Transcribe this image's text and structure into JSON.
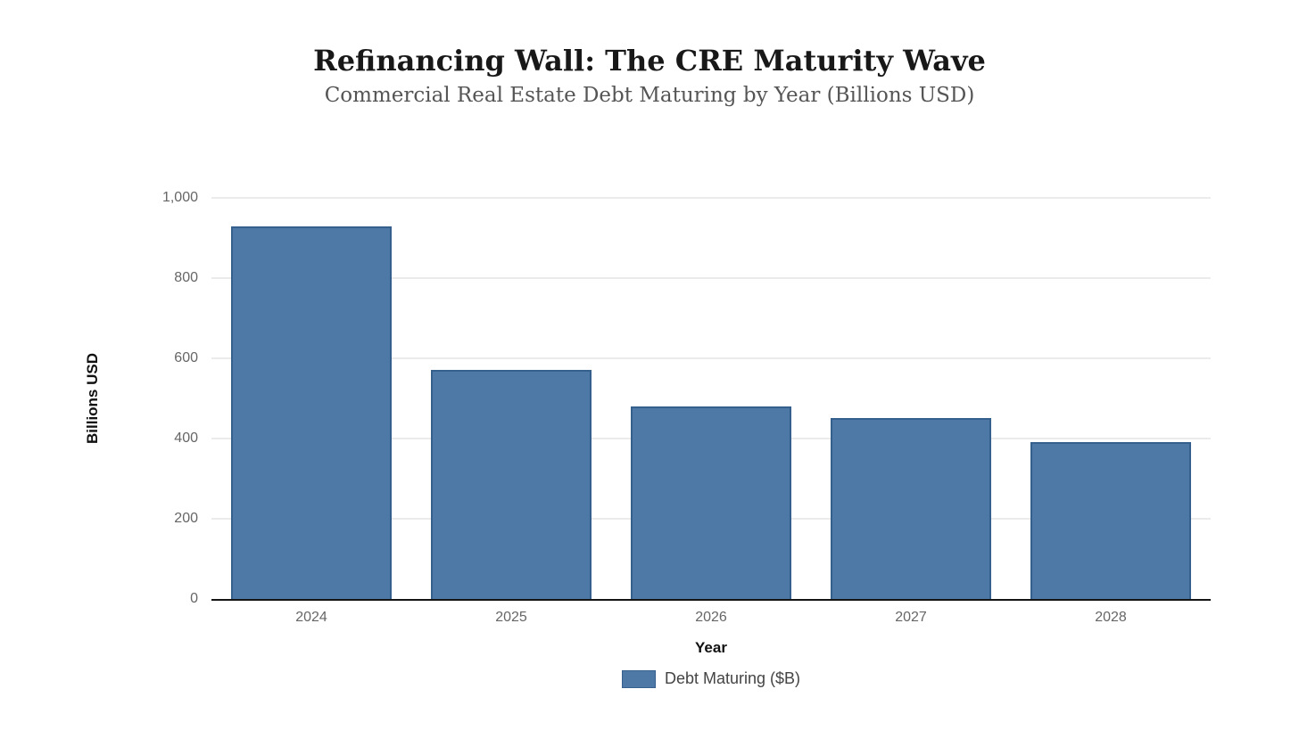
{
  "header": {
    "title": "Refinancing Wall: The CRE Maturity Wave",
    "subtitle": "Commercial Real Estate Debt Maturing by Year (Billions USD)"
  },
  "chart_data": {
    "type": "bar",
    "title": "Refinancing Wall: The CRE Maturity Wave",
    "subtitle": "Commercial Real Estate Debt Maturing by Year (Billions USD)",
    "categories": [
      "2024",
      "2025",
      "2026",
      "2027",
      "2028"
    ],
    "series": [
      {
        "name": "Debt Maturing ($B)",
        "values": [
          929,
          570,
          480,
          450,
          390
        ]
      }
    ],
    "xlabel": "Year",
    "ylabel": "Billions USD",
    "ylim": [
      0,
      1000
    ],
    "yticks": [
      0,
      200,
      400,
      600,
      800,
      1000
    ],
    "ytick_labels": [
      "0",
      "200",
      "400",
      "600",
      "800",
      "1,000"
    ],
    "grid": true,
    "legend": {
      "label": "Debt Maturing ($B)",
      "position": "bottom"
    },
    "colors": {
      "bar_fill": "#4e79a7",
      "bar_border": "#35608d",
      "gridline": "#ebebeb",
      "axis_line": "#151515",
      "tick_text": "#666666",
      "axis_title_text": "#111111",
      "title_text": "#181818",
      "subtitle_text": "#555555",
      "legend_text": "#444444"
    }
  }
}
